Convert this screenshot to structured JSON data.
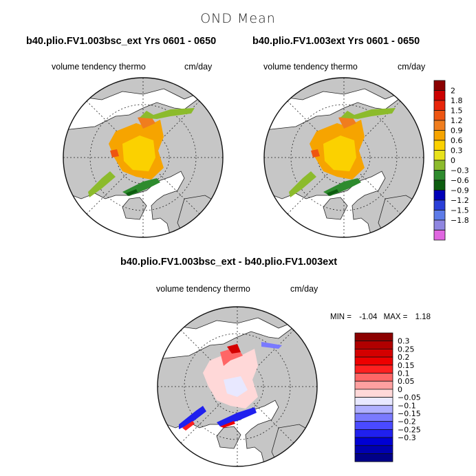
{
  "main_title": "OND Mean",
  "panels": [
    {
      "title": "b40.plio.FV1.003bsc_ext  Yrs 0601 - 0650",
      "variable": "volume tendency thermo",
      "units": "cm/day"
    },
    {
      "title": "b40.plio.FV1.003ext  Yrs 0601 - 0650",
      "variable": "volume tendency thermo",
      "units": "cm/day"
    },
    {
      "title": "b40.plio.FV1.003bsc_ext - b40.plio.FV1.003ext",
      "variable": "volume tendency thermo",
      "units": "cm/day",
      "stats": {
        "min_label": "MIN =",
        "min_value": "-1.04",
        "max_label": "MAX =",
        "max_value": "1.18"
      }
    }
  ],
  "colorbar_top": {
    "labels": [
      "2",
      "1.8",
      "1.5",
      "1.2",
      "0.9",
      "0.6",
      "0.3",
      "0",
      "-0.3",
      "-0.6",
      "-0.9",
      "-1.2",
      "-1.5",
      "-1.8"
    ],
    "colors": [
      "#8b0000",
      "#cc0000",
      "#e8250a",
      "#ee5512",
      "#f07d1e",
      "#f6a400",
      "#fbd100",
      "#e8e21a",
      "#8cbb2c",
      "#2e8b2e",
      "#0d5d10",
      "#0000b8",
      "#2a3fd8",
      "#5d7be8",
      "#8f86e0",
      "#e066e0"
    ]
  },
  "colorbar_diff": {
    "labels": [
      "0.3",
      "0.25",
      "0.2",
      "0.15",
      "0.1",
      "0.05",
      "0",
      "-0.05",
      "-0.1",
      "-0.15",
      "-0.2",
      "-0.25",
      "-0.3"
    ],
    "colors": [
      "#8b0000",
      "#b00000",
      "#d40000",
      "#ee0000",
      "#ff2020",
      "#ff6666",
      "#ffa0a0",
      "#ffd8d8",
      "#e8e8ff",
      "#b0b0ff",
      "#7a7aff",
      "#4a4aff",
      "#2020ee",
      "#0000d4",
      "#0000b0",
      "#000088"
    ]
  }
}
